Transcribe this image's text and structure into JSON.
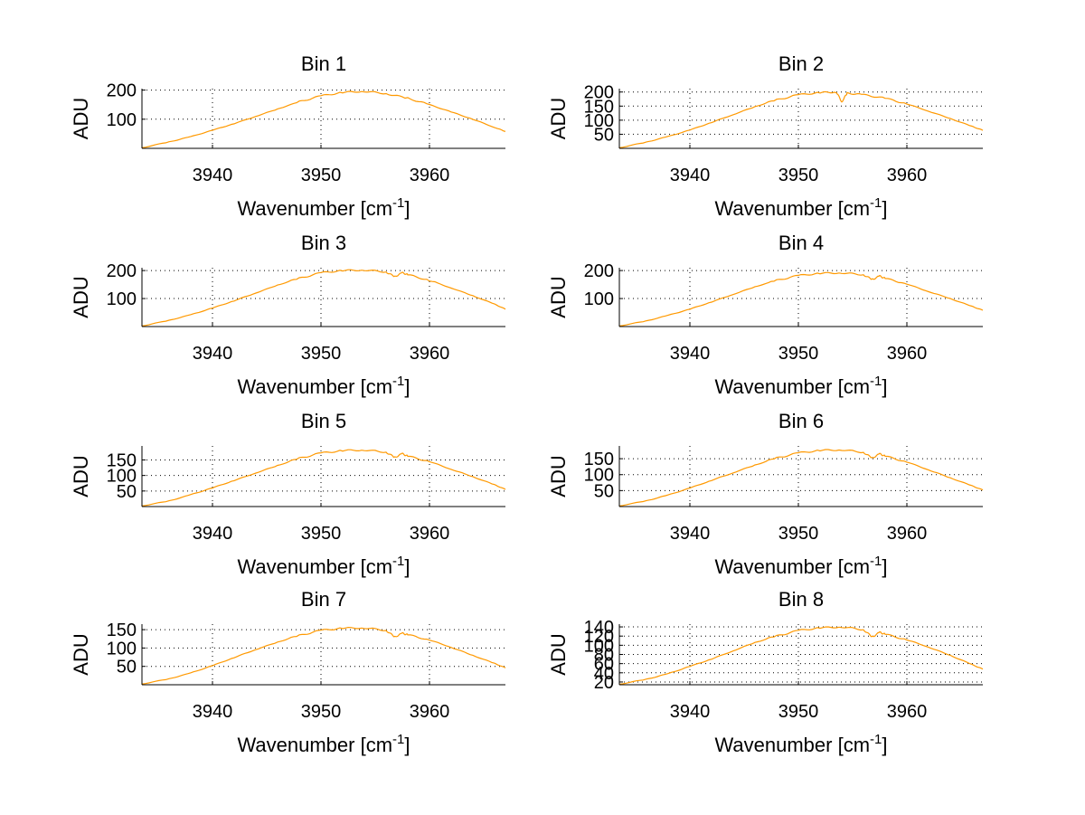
{
  "chart_data": [
    {
      "type": "line",
      "title": "Bin 1",
      "xlabel": "Wavenumber [cm",
      "xlabel_sup": "-1",
      "xlabel_end": "]",
      "ylabel": "ADU",
      "xlim": [
        3933.5,
        3967
      ],
      "ylim": [
        0,
        205
      ],
      "xticks": [
        3940,
        3950,
        3960
      ],
      "yticks": [
        100,
        200
      ],
      "grid": true,
      "series": [
        {
          "color": "#ff9900",
          "x": [
            3933.5,
            3936,
            3938,
            3940,
            3942,
            3944,
            3946,
            3948,
            3950,
            3952,
            3954,
            3956,
            3958,
            3960,
            3962,
            3964,
            3966,
            3967
          ],
          "y": [
            2,
            22,
            40,
            62,
            85,
            110,
            135,
            160,
            180,
            192,
            196,
            188,
            172,
            150,
            125,
            100,
            72,
            58
          ]
        }
      ]
    },
    {
      "type": "line",
      "title": "Bin 2",
      "xlabel": "Wavenumber [cm",
      "xlabel_sup": "-1",
      "xlabel_end": "]",
      "ylabel": "ADU",
      "xlim": [
        3933.5,
        3967
      ],
      "ylim": [
        0,
        212
      ],
      "xticks": [
        3940,
        3950,
        3960
      ],
      "yticks": [
        50,
        100,
        150,
        200
      ],
      "grid": true,
      "series": [
        {
          "color": "#ff9900",
          "x": [
            3933.5,
            3936,
            3938,
            3940,
            3942,
            3944,
            3946,
            3948,
            3950,
            3952,
            3953.5,
            3954,
            3954.5,
            3956,
            3958,
            3960,
            3962,
            3964,
            3966,
            3967
          ],
          "y": [
            2,
            22,
            42,
            65,
            92,
            120,
            148,
            172,
            190,
            198,
            200,
            165,
            196,
            190,
            178,
            158,
            132,
            106,
            78,
            64
          ]
        }
      ]
    },
    {
      "type": "line",
      "title": "Bin 3",
      "xlabel": "Wavenumber [cm",
      "xlabel_sup": "-1",
      "xlabel_end": "]",
      "ylabel": "ADU",
      "xlim": [
        3933.5,
        3967
      ],
      "ylim": [
        0,
        210
      ],
      "xticks": [
        3940,
        3950,
        3960
      ],
      "yticks": [
        100,
        200
      ],
      "grid": true,
      "series": [
        {
          "color": "#ff9900",
          "x": [
            3933.5,
            3936,
            3938,
            3940,
            3942,
            3944,
            3946,
            3948,
            3950,
            3952,
            3954,
            3956,
            3956.8,
            3957.5,
            3958,
            3960,
            3962,
            3964,
            3966,
            3967
          ],
          "y": [
            2,
            22,
            42,
            66,
            92,
            120,
            148,
            172,
            192,
            200,
            202,
            195,
            178,
            192,
            185,
            165,
            138,
            110,
            80,
            62
          ]
        }
      ]
    },
    {
      "type": "line",
      "title": "Bin 4",
      "xlabel": "Wavenumber [cm",
      "xlabel_sup": "-1",
      "xlabel_end": "]",
      "ylabel": "ADU",
      "xlim": [
        3933.5,
        3967
      ],
      "ylim": [
        0,
        210
      ],
      "xticks": [
        3940,
        3950,
        3960
      ],
      "yticks": [
        100,
        200
      ],
      "grid": true,
      "series": [
        {
          "color": "#ff9900",
          "x": [
            3933.5,
            3936,
            3938,
            3940,
            3942,
            3944,
            3946,
            3948,
            3950,
            3952,
            3954,
            3956,
            3956.8,
            3957.5,
            3958,
            3960,
            3962,
            3964,
            3966,
            3967
          ],
          "y": [
            2,
            20,
            40,
            62,
            88,
            115,
            142,
            165,
            182,
            190,
            192,
            185,
            168,
            180,
            172,
            152,
            125,
            100,
            72,
            58
          ]
        }
      ]
    },
    {
      "type": "line",
      "title": "Bin 5",
      "xlabel": "Wavenumber [cm",
      "xlabel_sup": "-1",
      "xlabel_end": "]",
      "ylabel": "ADU",
      "xlim": [
        3933.5,
        3967
      ],
      "ylim": [
        0,
        195
      ],
      "xticks": [
        3940,
        3950,
        3960
      ],
      "yticks": [
        50,
        100,
        150
      ],
      "grid": true,
      "series": [
        {
          "color": "#ff9900",
          "x": [
            3933.5,
            3936,
            3938,
            3940,
            3942,
            3944,
            3946,
            3948,
            3950,
            3952,
            3954,
            3956,
            3956.8,
            3957.5,
            3958,
            3960,
            3962,
            3964,
            3966,
            3967
          ],
          "y": [
            2,
            18,
            38,
            60,
            84,
            108,
            132,
            155,
            172,
            180,
            182,
            175,
            158,
            170,
            162,
            145,
            120,
            96,
            70,
            55
          ]
        }
      ]
    },
    {
      "type": "line",
      "title": "Bin 6",
      "xlabel": "Wavenumber [cm",
      "xlabel_sup": "-1",
      "xlabel_end": "]",
      "ylabel": "ADU",
      "xlim": [
        3933.5,
        3967
      ],
      "ylim": [
        0,
        190
      ],
      "xticks": [
        3940,
        3950,
        3960
      ],
      "yticks": [
        50,
        100,
        150
      ],
      "grid": true,
      "series": [
        {
          "color": "#ff9900",
          "x": [
            3933.5,
            3936,
            3938,
            3940,
            3942,
            3944,
            3946,
            3948,
            3950,
            3952,
            3954,
            3956,
            3956.8,
            3957.5,
            3958,
            3960,
            3962,
            3964,
            3966,
            3967
          ],
          "y": [
            2,
            18,
            36,
            58,
            82,
            106,
            130,
            152,
            168,
            176,
            178,
            170,
            152,
            165,
            158,
            140,
            115,
            90,
            65,
            52
          ]
        }
      ]
    },
    {
      "type": "line",
      "title": "Bin 7",
      "xlabel": "Wavenumber [cm",
      "xlabel_sup": "-1",
      "xlabel_end": "]",
      "ylabel": "ADU",
      "xlim": [
        3933.5,
        3967
      ],
      "ylim": [
        0,
        165
      ],
      "xticks": [
        3940,
        3950,
        3960
      ],
      "yticks": [
        50,
        100,
        150
      ],
      "grid": true,
      "series": [
        {
          "color": "#ff9900",
          "x": [
            3933.5,
            3936,
            3938,
            3940,
            3942,
            3944,
            3946,
            3948,
            3950,
            3952,
            3954,
            3956,
            3956.8,
            3957.5,
            3958,
            3960,
            3962,
            3964,
            3966,
            3967
          ],
          "y": [
            2,
            16,
            32,
            52,
            74,
            96,
            116,
            134,
            148,
            154,
            155,
            148,
            130,
            140,
            136,
            122,
            102,
            80,
            58,
            46
          ]
        }
      ]
    },
    {
      "type": "line",
      "title": "Bin 8",
      "xlabel": "Wavenumber [cm",
      "xlabel_sup": "-1",
      "xlabel_end": "]",
      "ylabel": "ADU",
      "xlim": [
        3933.5,
        3967
      ],
      "ylim": [
        14,
        146
      ],
      "xticks": [
        3940,
        3950,
        3960
      ],
      "yticks": [
        20,
        40,
        60,
        80,
        100,
        120,
        140
      ],
      "ytick_labels": [
        "20",
        "40",
        "60",
        "80",
        "100",
        "120",
        "140"
      ],
      "grid": true,
      "series": [
        {
          "color": "#ff9900",
          "x": [
            3933.5,
            3936,
            3938,
            3940,
            3942,
            3944,
            3946,
            3948,
            3950,
            3952,
            3954,
            3956,
            3956.8,
            3957.5,
            3958,
            3960,
            3962,
            3964,
            3966,
            3967
          ],
          "y": [
            15,
            26,
            38,
            54,
            70,
            88,
            106,
            120,
            132,
            138,
            140,
            134,
            118,
            128,
            124,
            112,
            96,
            78,
            58,
            48
          ]
        }
      ]
    }
  ]
}
